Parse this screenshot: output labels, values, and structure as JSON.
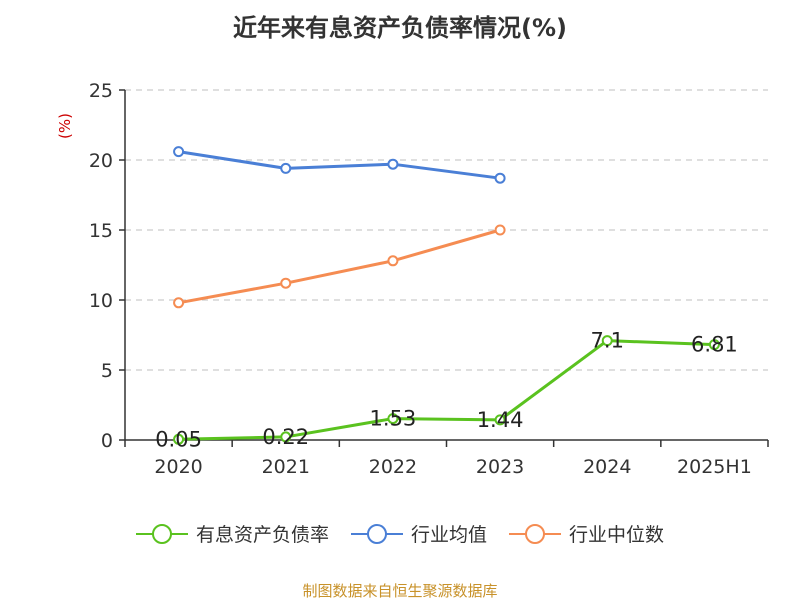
{
  "page": {
    "title": "近年来有息资产负债率情况(%)",
    "source": "制图数据来自恒生聚源数据库"
  },
  "chart_data": {
    "type": "line",
    "title": "近年来有息资产负债率情况(%)",
    "ylabel": "(%)",
    "xlabel": "",
    "categories": [
      "2020",
      "2021",
      "2022",
      "2023",
      "2024",
      "2025H1"
    ],
    "ylim": [
      0,
      25
    ],
    "yticks": [
      0,
      5,
      10,
      15,
      20,
      25
    ],
    "grid": true,
    "legend_position": "bottom",
    "series": [
      {
        "name": "有息资产负债率",
        "color": "#5ac21f",
        "values": [
          0.05,
          0.22,
          1.53,
          1.44,
          7.1,
          6.81
        ],
        "labels": [
          "0.05",
          "0.22",
          "1.53",
          "1.44",
          "7.1",
          "6.81"
        ],
        "show_labels": true
      },
      {
        "name": "行业均值",
        "color": "#4a7fd6",
        "values": [
          20.6,
          19.4,
          19.7,
          18.7,
          null,
          null
        ],
        "show_labels": false
      },
      {
        "name": "行业中位数",
        "color": "#f58c52",
        "values": [
          9.8,
          11.2,
          12.8,
          15.0,
          null,
          null
        ],
        "show_labels": false
      }
    ]
  }
}
